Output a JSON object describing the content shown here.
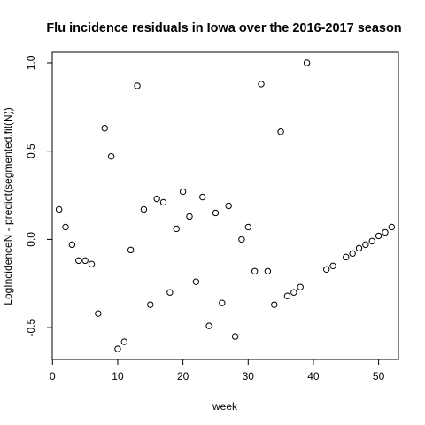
{
  "chart_data": {
    "type": "scatter",
    "title": "Flu incidence residuals in Iowa over the 2016-2017 season",
    "xlabel": "week",
    "ylabel": "LogIncidenceN - predict(segmented.fit(N))",
    "xlim": [
      -0.04,
      53.04
    ],
    "ylim": [
      -0.68,
      1.06
    ],
    "xticks": [
      0,
      10,
      20,
      30,
      40,
      50
    ],
    "xtick_labels": [
      "0",
      "10",
      "20",
      "30",
      "40",
      "50"
    ],
    "yticks": [
      -0.5,
      0.0,
      0.5,
      1.0
    ],
    "ytick_labels": [
      "-0.5",
      "0.0",
      "0.5",
      "1.0"
    ],
    "grid": false,
    "marker": "open-circle",
    "color": "#000000",
    "points": [
      {
        "x": 1,
        "y": 0.17
      },
      {
        "x": 2,
        "y": 0.07
      },
      {
        "x": 3,
        "y": -0.03
      },
      {
        "x": 4,
        "y": -0.12
      },
      {
        "x": 5,
        "y": -0.12
      },
      {
        "x": 6,
        "y": -0.14
      },
      {
        "x": 7,
        "y": -0.42
      },
      {
        "x": 8,
        "y": 0.63
      },
      {
        "x": 9,
        "y": 0.47
      },
      {
        "x": 10,
        "y": -0.62
      },
      {
        "x": 11,
        "y": -0.58
      },
      {
        "x": 12,
        "y": -0.06
      },
      {
        "x": 13,
        "y": 0.87
      },
      {
        "x": 14,
        "y": 0.17
      },
      {
        "x": 15,
        "y": -0.37
      },
      {
        "x": 16,
        "y": 0.23
      },
      {
        "x": 17,
        "y": 0.21
      },
      {
        "x": 18,
        "y": -0.3
      },
      {
        "x": 19,
        "y": 0.06
      },
      {
        "x": 20,
        "y": 0.27
      },
      {
        "x": 21,
        "y": 0.13
      },
      {
        "x": 22,
        "y": -0.24
      },
      {
        "x": 23,
        "y": 0.24
      },
      {
        "x": 24,
        "y": -0.49
      },
      {
        "x": 25,
        "y": 0.15
      },
      {
        "x": 26,
        "y": -0.36
      },
      {
        "x": 27,
        "y": 0.19
      },
      {
        "x": 28,
        "y": -0.55
      },
      {
        "x": 29,
        "y": 0.0
      },
      {
        "x": 30,
        "y": 0.07
      },
      {
        "x": 31,
        "y": -0.18
      },
      {
        "x": 32,
        "y": 0.88
      },
      {
        "x": 33,
        "y": -0.18
      },
      {
        "x": 34,
        "y": -0.37
      },
      {
        "x": 35,
        "y": 0.61
      },
      {
        "x": 36,
        "y": -0.32
      },
      {
        "x": 37,
        "y": -0.3
      },
      {
        "x": 38,
        "y": -0.27
      },
      {
        "x": 39,
        "y": 1.0
      },
      {
        "x": 42,
        "y": -0.17
      },
      {
        "x": 43,
        "y": -0.15
      },
      {
        "x": 45,
        "y": -0.1
      },
      {
        "x": 46,
        "y": -0.08
      },
      {
        "x": 47,
        "y": -0.05
      },
      {
        "x": 48,
        "y": -0.03
      },
      {
        "x": 49,
        "y": -0.01
      },
      {
        "x": 50,
        "y": 0.02
      },
      {
        "x": 51,
        "y": 0.04
      },
      {
        "x": 52,
        "y": 0.07
      }
    ]
  }
}
